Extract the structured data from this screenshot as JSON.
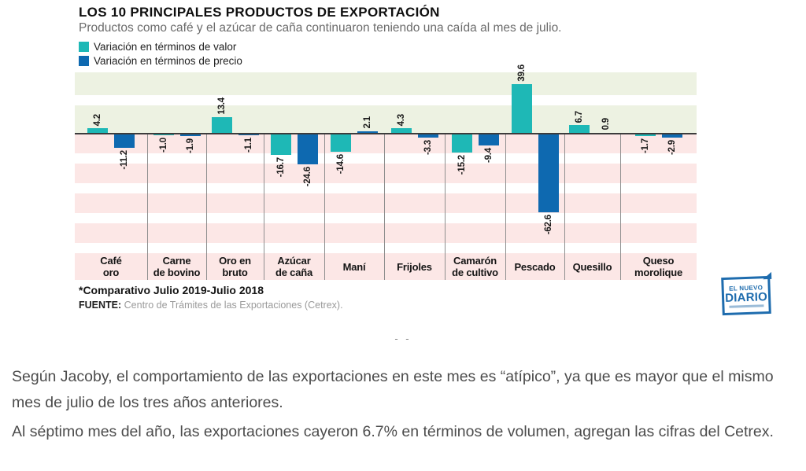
{
  "chart_data": {
    "type": "bar",
    "title": "LOS 10 PRINCIPALES PRODUCTOS DE EXPORTACIÓN",
    "subtitle": "Productos como café y el azúcar de caña continuaron teniendo una caída al mes de julio.",
    "categories": [
      "Café oro",
      "Carne de bovino",
      "Oro en bruto",
      "Azúcar de caña",
      "Maní",
      "Frijoles",
      "Camarón de cultivo",
      "Pescado",
      "Quesillo",
      "Queso morolique"
    ],
    "category_label_lines": [
      [
        "Café",
        "oro"
      ],
      [
        "Carne",
        "de bovino"
      ],
      [
        "Oro en",
        "bruto"
      ],
      [
        "Azúcar",
        "de caña"
      ],
      [
        "Maní"
      ],
      [
        "Frijoles"
      ],
      [
        "Camarón",
        "de cultivo"
      ],
      [
        "Pescado"
      ],
      [
        "Quesillo"
      ],
      [
        "Queso",
        "morolique"
      ]
    ],
    "series": [
      {
        "name": "Variación en términos de valor",
        "color": "#1eb8b6",
        "values": [
          4.2,
          -1.0,
          13.4,
          -16.7,
          -14.6,
          4.3,
          -15.2,
          39.6,
          6.7,
          -1.7
        ]
      },
      {
        "name": "Variación en términos de precio",
        "color": "#0e69b0",
        "values": [
          -11.2,
          -1.9,
          -1.1,
          -24.6,
          2.1,
          -3.3,
          -9.4,
          -62.6,
          0.9,
          -2.9
        ]
      }
    ],
    "ylim": [
      -70,
      45
    ],
    "xlabel": "",
    "ylabel": "",
    "value_labels": true,
    "value_label_rotation": -90,
    "legend_position": "top-left",
    "grid": "striped horizontal bands (green above zero, pink below zero)",
    "band_colors": {
      "positive": "#edf2e2",
      "negative": "#fce7e6"
    }
  },
  "infographic": {
    "footnote": "*Comparativo Julio 2019-Julio 2018",
    "source_label": "FUENTE:",
    "source_text": " Centro de Trámites de las Exportaciones (Cetrex).",
    "logo": {
      "line1": "EL NUEVO",
      "line2": "DIARIO"
    }
  },
  "separator": "- -",
  "article": {
    "paragraph1": "Según Jacoby, el comportamiento de las exportaciones en este mes es “atípico”, ya que es mayor que el mismo mes de julio de los tres años anteriores.",
    "paragraph2": "Al séptimo mes del año, las exportaciones cayeron 6.7% en términos de volumen, agregan las cifras del Cetrex."
  }
}
